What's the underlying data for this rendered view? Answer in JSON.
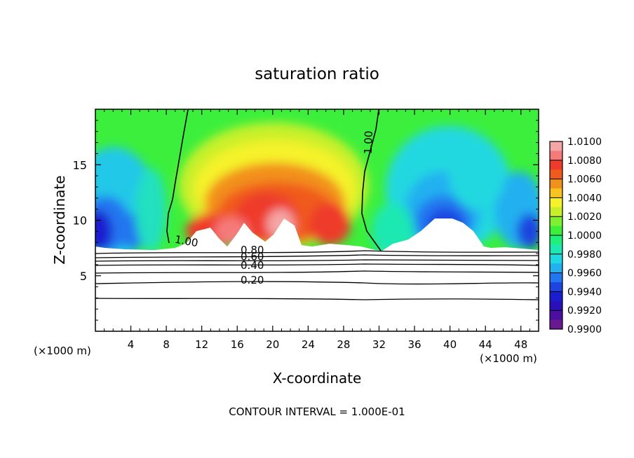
{
  "chart_data": {
    "type": "heatmap",
    "title": "saturation ratio",
    "xlabel": "X-coordinate",
    "ylabel": "Z-coordinate",
    "x_unit_left": "(×1000 m)",
    "x_unit_right": "(×1000 m)",
    "xlim": [
      0,
      50
    ],
    "ylim": [
      0,
      20
    ],
    "x_ticks": [
      4,
      8,
      12,
      16,
      20,
      24,
      28,
      32,
      36,
      40,
      44,
      48
    ],
    "y_ticks": [
      5,
      10,
      15
    ],
    "colorbar": {
      "levels": [
        "1.0100",
        "1.0080",
        "1.0060",
        "1.0040",
        "1.0020",
        "1.0000",
        "0.9980",
        "0.9960",
        "0.9940",
        "0.9920",
        "0.9900"
      ],
      "colors": [
        "#f4a6a6",
        "#f57a7a",
        "#ee3b2b",
        "#f05a1a",
        "#f2901c",
        "#f6c320",
        "#f5f22a",
        "#c8f02a",
        "#7ef030",
        "#3cf03a",
        "#1ef07a",
        "#1ee8b2",
        "#20d8e0",
        "#22b0f0",
        "#2276f0",
        "#1f44e0",
        "#1a1ed0",
        "#2a10b8",
        "#4a0ea0",
        "#6a1890"
      ],
      "range": [
        0.99,
        1.01
      ]
    },
    "contour_labels": [
      {
        "text": "1.00",
        "x": 10.2,
        "z": 7.8,
        "rot": 10
      },
      {
        "text": "1.00",
        "x": 31.2,
        "z": 17.0,
        "rot": -88
      },
      {
        "text": "0.80",
        "x": 17.7,
        "z": 7.0,
        "rot": 0
      },
      {
        "text": "0.60",
        "x": 17.7,
        "z": 6.4,
        "rot": 0
      },
      {
        "text": "0.40",
        "x": 17.7,
        "z": 5.6,
        "rot": 0
      },
      {
        "text": "0.20",
        "x": 17.7,
        "z": 4.3,
        "rot": 0
      }
    ],
    "annotation": "CONTOUR INTERVAL = 1.000E-01"
  }
}
